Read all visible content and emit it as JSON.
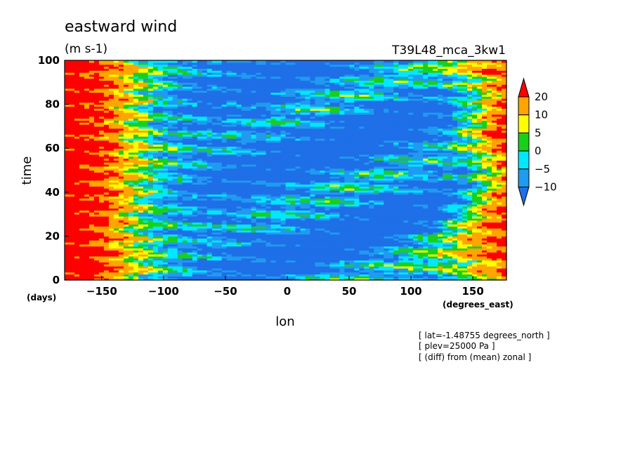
{
  "chart_data": {
    "type": "heatmap",
    "title": "eastward wind",
    "units": "(m s-1)",
    "experiment": "T39L48_mca_3kw1",
    "xlabel": "lon",
    "ylabel": "time",
    "x_unit": "(degrees_east)",
    "y_unit": "(days)",
    "xlim": [
      -180,
      177.19
    ],
    "ylim": [
      0,
      100
    ],
    "xticks": [
      -150,
      -100,
      -50,
      0,
      50,
      100,
      150
    ],
    "yticks": [
      0,
      20,
      40,
      60,
      80,
      100
    ],
    "contour_levels": [
      -10,
      -5,
      0,
      5,
      10,
      20
    ],
    "colorbar": [
      {
        "range": "< -10",
        "color": "#1f6fe8"
      },
      {
        "range": "-10 to -5",
        "color": "#1f9bf0"
      },
      {
        "range": "-5 to 0",
        "color": "#00e8ff"
      },
      {
        "range": "0 to 5",
        "color": "#19d019"
      },
      {
        "range": "5 to 10",
        "color": "#ffff00"
      },
      {
        "range": "10 to 20",
        "color": "#ffa500"
      },
      {
        "range": "> 20",
        "color": "#ff0000"
      }
    ],
    "notes": [
      "[ lat=-1.48755 degrees_north ]",
      "[ plev=25000 Pa ]",
      "[ (diff) from (mean) zonal ]"
    ]
  }
}
